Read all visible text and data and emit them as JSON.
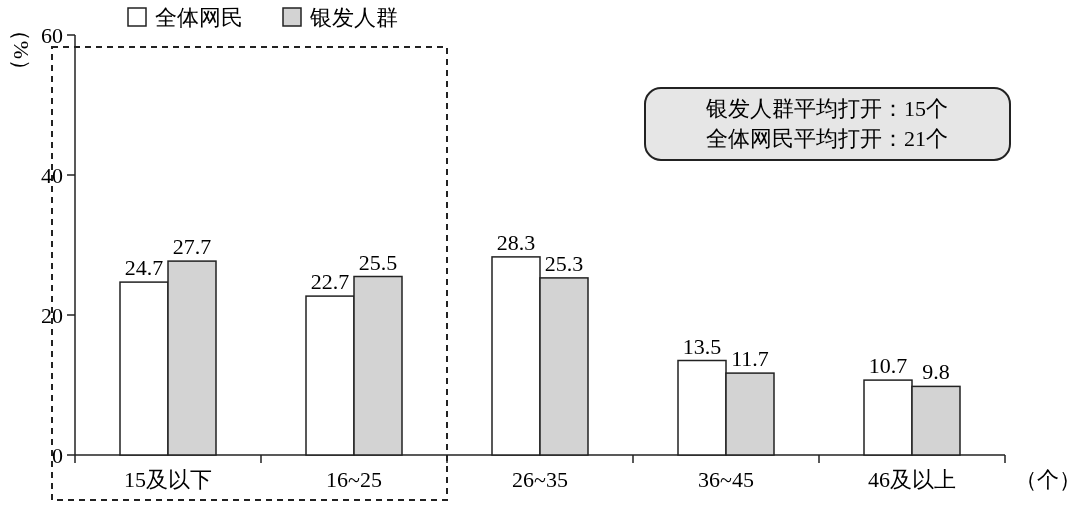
{
  "chart_data": {
    "type": "bar",
    "ylabel": "（%）",
    "xlabel": "（个）",
    "categories": [
      "15及以下",
      "16~25",
      "26~35",
      "36~45",
      "46及以上"
    ],
    "series": [
      {
        "name": "全体网民",
        "color": "#ffffff",
        "values": [
          24.7,
          22.7,
          28.3,
          13.5,
          10.7
        ]
      },
      {
        "name": "银发人群",
        "color": "#d3d3d3",
        "values": [
          27.7,
          25.5,
          25.3,
          11.7,
          9.8
        ]
      }
    ],
    "ylim": [
      0,
      60
    ],
    "yticks": [
      0,
      20,
      40,
      60
    ],
    "data_labels": true,
    "legend": "top left",
    "annotations": [
      "银发人群平均打开：15个",
      "全体网民平均打开：21个"
    ]
  }
}
